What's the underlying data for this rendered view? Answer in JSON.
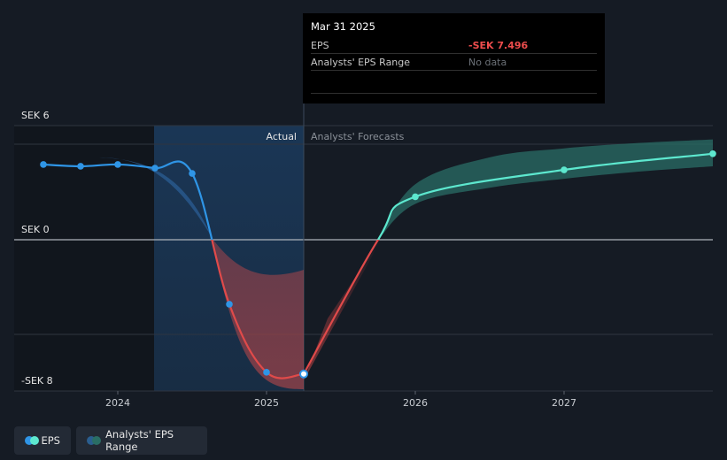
{
  "chart_data": {
    "type": "line",
    "y_unit": "SEK",
    "y_ticks": [
      {
        "value": 6,
        "label": "SEK 6"
      },
      {
        "value": 0,
        "label": "SEK 0"
      },
      {
        "value": -8,
        "label": "-SEK 8"
      }
    ],
    "x_ticks": [
      {
        "value": 2024.0,
        "label": "2024"
      },
      {
        "value": 2025.0,
        "label": "2025"
      },
      {
        "value": 2026.0,
        "label": "2026"
      },
      {
        "value": 2027.0,
        "label": "2027"
      }
    ],
    "xlim": [
      2023.15,
      2028.0
    ],
    "ylim": [
      -8.0,
      6.0
    ],
    "divider_x": 2025.25,
    "actual_label": "Actual",
    "forecast_label": "Analysts' Forecasts",
    "eps_actual": [
      {
        "x": 2023.5,
        "y": 4.2
      },
      {
        "x": 2023.75,
        "y": 4.1
      },
      {
        "x": 2024.0,
        "y": 4.2
      },
      {
        "x": 2024.25,
        "y": 4.0
      },
      {
        "x": 2024.5,
        "y": 3.7
      },
      {
        "x": 2024.75,
        "y": -3.6
      },
      {
        "x": 2025.0,
        "y": -7.4
      },
      {
        "x": 2025.25,
        "y": -7.496
      }
    ],
    "eps_forecast": [
      {
        "x": 2025.25,
        "y": -7.496
      },
      {
        "x": 2025.75,
        "y": 0.0
      },
      {
        "x": 2026.0,
        "y": 2.4
      },
      {
        "x": 2027.0,
        "y": 3.9
      },
      {
        "x": 2028.0,
        "y": 4.8
      }
    ],
    "forecast_range": {
      "x": [
        2025.75,
        2026.0,
        2026.5,
        2027.0,
        2027.5,
        2028.0
      ],
      "low": [
        0.0,
        2.0,
        2.9,
        3.4,
        3.8,
        4.1
      ],
      "high": [
        0.0,
        3.1,
        4.6,
        5.1,
        5.4,
        5.6
      ]
    }
  },
  "tooltip": {
    "date": "Mar 31 2025",
    "rows": [
      {
        "label": "EPS",
        "value": "-SEK 7.496"
      },
      {
        "label": "Analysts' EPS Range",
        "value": "No data"
      }
    ]
  },
  "legend": {
    "items": [
      {
        "label": "EPS"
      },
      {
        "label": "Analysts' EPS Range"
      }
    ]
  },
  "colors": {
    "background": "#151b24",
    "eps_actual": "#2f95e6",
    "eps_forecast": "#5de8cf",
    "negative": "#e04a4a",
    "range_fill": "#2a6e65",
    "grid": "#2e3540",
    "zero_line": "#aeb4bb",
    "highlight": "#1a3a5c"
  }
}
